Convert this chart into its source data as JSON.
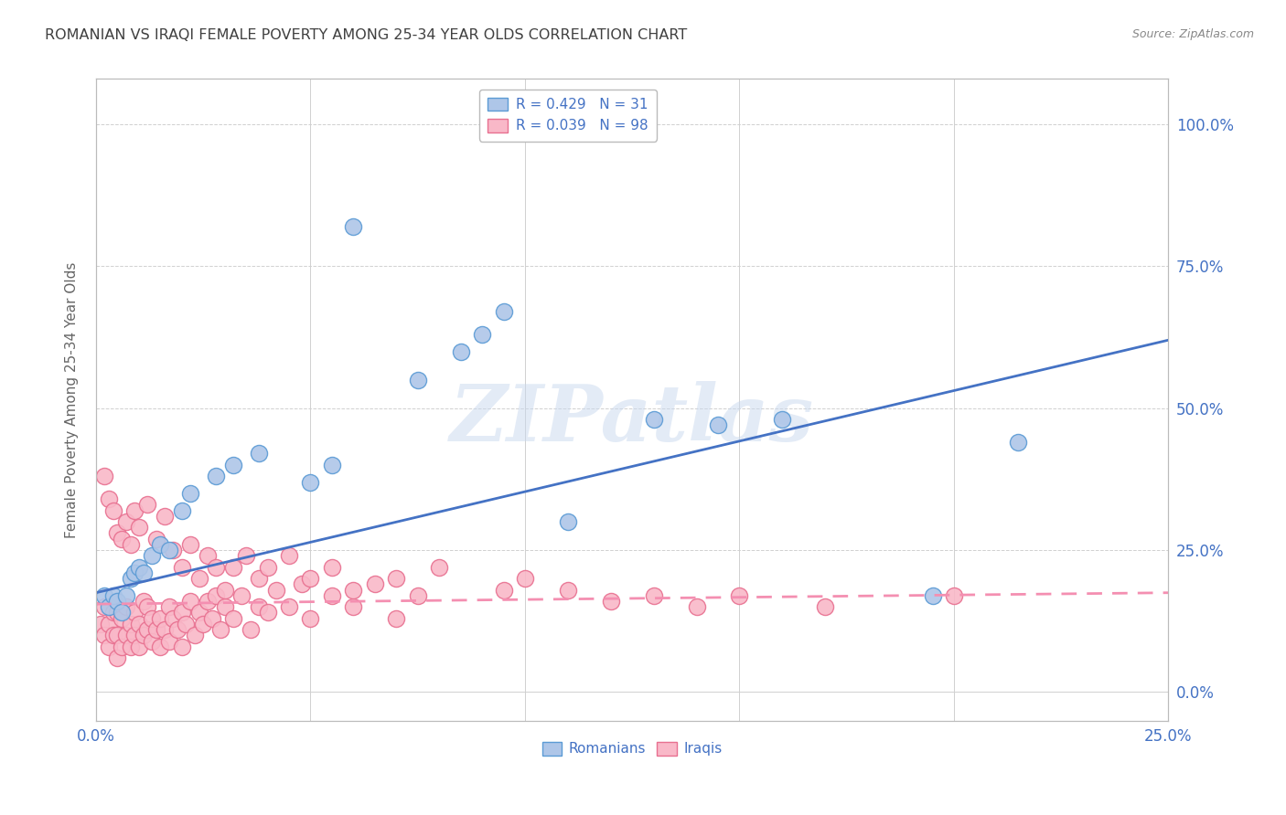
{
  "title": "ROMANIAN VS IRAQI FEMALE POVERTY AMONG 25-34 YEAR OLDS CORRELATION CHART",
  "source": "Source: ZipAtlas.com",
  "ylabel": "Female Poverty Among 25-34 Year Olds",
  "xlim": [
    0,
    0.25
  ],
  "ylim": [
    -0.05,
    1.08
  ],
  "yticks": [
    0.0,
    0.25,
    0.5,
    0.75,
    1.0
  ],
  "ytick_labels": [
    "0.0%",
    "25.0%",
    "50.0%",
    "75.0%",
    "100.0%"
  ],
  "xticks": [
    0.0,
    0.25
  ],
  "xtick_labels": [
    "0.0%",
    "25.0%"
  ],
  "romanian_color": "#aec6e8",
  "romanian_edge_color": "#5b9bd5",
  "iraqi_color": "#f9b8c8",
  "iraqi_edge_color": "#e87090",
  "line_romanian_color": "#4472c4",
  "line_iraqi_color": "#f48fb1",
  "R_romanian": 0.429,
  "N_romanian": 31,
  "R_iraqi": 0.039,
  "N_iraqi": 98,
  "watermark_text": "ZIPatlas",
  "background_color": "#ffffff",
  "grid_color": "#d0d0d0",
  "title_color": "#404040",
  "axis_label_color": "#4472c4",
  "legend_text_color": "#4472c4",
  "source_color": "#888888",
  "ylabel_color": "#666666",
  "romanian_x": [
    0.002,
    0.003,
    0.004,
    0.005,
    0.006,
    0.007,
    0.008,
    0.009,
    0.01,
    0.011,
    0.013,
    0.015,
    0.017,
    0.02,
    0.022,
    0.028,
    0.032,
    0.038,
    0.05,
    0.055,
    0.06,
    0.075,
    0.085,
    0.09,
    0.095,
    0.11,
    0.13,
    0.145,
    0.16,
    0.195,
    0.215
  ],
  "romanian_y": [
    0.17,
    0.15,
    0.17,
    0.16,
    0.14,
    0.17,
    0.2,
    0.21,
    0.22,
    0.21,
    0.24,
    0.26,
    0.25,
    0.32,
    0.35,
    0.38,
    0.4,
    0.42,
    0.37,
    0.4,
    0.82,
    0.55,
    0.6,
    0.63,
    0.67,
    0.3,
    0.48,
    0.47,
    0.48,
    0.17,
    0.44
  ],
  "iraqi_x": [
    0.001,
    0.002,
    0.002,
    0.003,
    0.003,
    0.004,
    0.004,
    0.005,
    0.005,
    0.005,
    0.006,
    0.006,
    0.007,
    0.007,
    0.008,
    0.008,
    0.009,
    0.009,
    0.01,
    0.01,
    0.011,
    0.011,
    0.012,
    0.012,
    0.013,
    0.013,
    0.014,
    0.015,
    0.015,
    0.016,
    0.017,
    0.017,
    0.018,
    0.019,
    0.02,
    0.02,
    0.021,
    0.022,
    0.023,
    0.024,
    0.025,
    0.026,
    0.027,
    0.028,
    0.029,
    0.03,
    0.032,
    0.034,
    0.036,
    0.038,
    0.04,
    0.042,
    0.045,
    0.048,
    0.05,
    0.055,
    0.06,
    0.065,
    0.07,
    0.075,
    0.002,
    0.003,
    0.004,
    0.005,
    0.006,
    0.007,
    0.008,
    0.009,
    0.01,
    0.012,
    0.014,
    0.016,
    0.018,
    0.02,
    0.022,
    0.024,
    0.026,
    0.028,
    0.03,
    0.032,
    0.035,
    0.038,
    0.04,
    0.045,
    0.05,
    0.055,
    0.06,
    0.07,
    0.08,
    0.095,
    0.1,
    0.11,
    0.12,
    0.13,
    0.14,
    0.15,
    0.17,
    0.2
  ],
  "iraqi_y": [
    0.12,
    0.1,
    0.15,
    0.08,
    0.12,
    0.1,
    0.14,
    0.06,
    0.1,
    0.14,
    0.08,
    0.13,
    0.1,
    0.15,
    0.08,
    0.12,
    0.1,
    0.14,
    0.08,
    0.12,
    0.1,
    0.16,
    0.11,
    0.15,
    0.09,
    0.13,
    0.11,
    0.08,
    0.13,
    0.11,
    0.15,
    0.09,
    0.13,
    0.11,
    0.08,
    0.14,
    0.12,
    0.16,
    0.1,
    0.14,
    0.12,
    0.16,
    0.13,
    0.17,
    0.11,
    0.15,
    0.13,
    0.17,
    0.11,
    0.15,
    0.14,
    0.18,
    0.15,
    0.19,
    0.13,
    0.17,
    0.15,
    0.19,
    0.13,
    0.17,
    0.38,
    0.34,
    0.32,
    0.28,
    0.27,
    0.3,
    0.26,
    0.32,
    0.29,
    0.33,
    0.27,
    0.31,
    0.25,
    0.22,
    0.26,
    0.2,
    0.24,
    0.22,
    0.18,
    0.22,
    0.24,
    0.2,
    0.22,
    0.24,
    0.2,
    0.22,
    0.18,
    0.2,
    0.22,
    0.18,
    0.2,
    0.18,
    0.16,
    0.17,
    0.15,
    0.17,
    0.15,
    0.17
  ],
  "rom_line_x": [
    0.0,
    0.25
  ],
  "rom_line_y": [
    0.175,
    0.62
  ],
  "ira_line_x": [
    0.0,
    0.25
  ],
  "ira_line_y": [
    0.155,
    0.175
  ]
}
